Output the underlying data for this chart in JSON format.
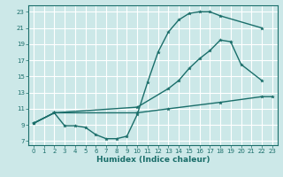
{
  "xlabel": "Humidex (Indice chaleur)",
  "bg_color": "#cce8e8",
  "grid_color": "#ffffff",
  "line_color": "#1a6e6a",
  "xlim": [
    -0.5,
    23.5
  ],
  "ylim": [
    6.5,
    23.8
  ],
  "xticks": [
    0,
    1,
    2,
    3,
    4,
    5,
    6,
    7,
    8,
    9,
    10,
    11,
    12,
    13,
    14,
    15,
    16,
    17,
    18,
    19,
    20,
    21,
    22,
    23
  ],
  "yticks": [
    7,
    9,
    11,
    13,
    15,
    17,
    19,
    21,
    23
  ],
  "curve1_x": [
    0,
    2,
    3,
    4,
    5,
    6,
    7,
    8,
    9,
    10,
    11,
    12,
    13,
    14,
    15,
    16,
    17,
    18,
    22
  ],
  "curve1_y": [
    9.2,
    10.5,
    8.9,
    8.9,
    8.7,
    7.8,
    7.3,
    7.3,
    7.6,
    10.3,
    14.3,
    18.0,
    20.5,
    22.0,
    22.8,
    23.0,
    23.0,
    22.5,
    21.0
  ],
  "curve2_x": [
    0,
    2,
    10,
    13,
    14,
    15,
    16,
    17,
    18,
    19,
    20,
    22
  ],
  "curve2_y": [
    9.2,
    10.5,
    11.2,
    13.5,
    14.5,
    16.0,
    17.2,
    18.2,
    19.5,
    19.3,
    16.5,
    14.5
  ],
  "curve3_x": [
    0,
    2,
    10,
    13,
    18,
    22,
    23
  ],
  "curve3_y": [
    9.2,
    10.5,
    10.5,
    11.0,
    11.8,
    12.5,
    12.5
  ]
}
